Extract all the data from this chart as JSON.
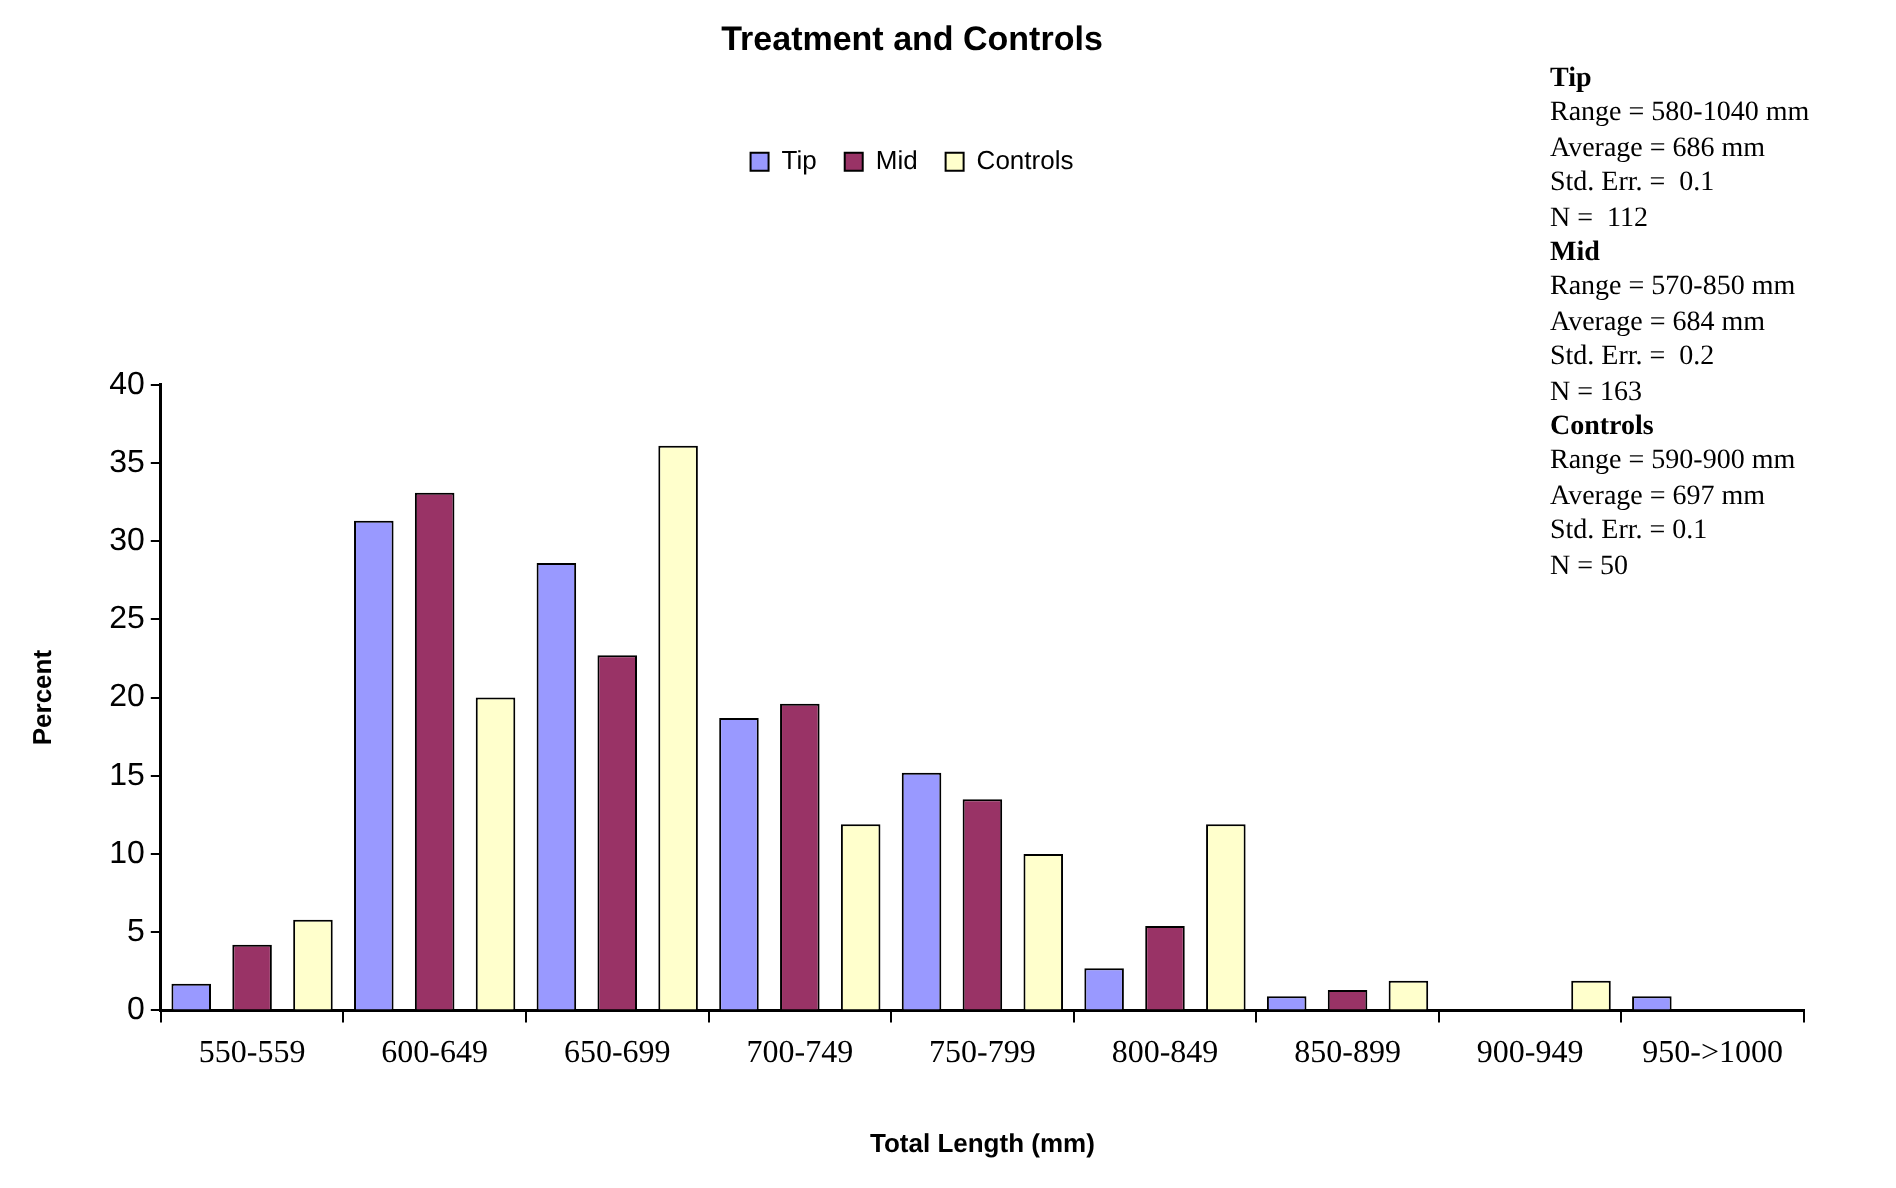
{
  "chart_data": {
    "type": "bar",
    "title": "Treatment and Controls",
    "xlabel": "Total Length (mm)",
    "ylabel": "Percent",
    "categories": [
      "550-559",
      "600-649",
      "650-699",
      "700-749",
      "750-799",
      "800-849",
      "850-899",
      "900-949",
      "950->1000"
    ],
    "series": [
      {
        "name": "Tip",
        "color": "#9999ff",
        "values": [
          1.7,
          31.3,
          28.6,
          18.7,
          15.2,
          2.7,
          0.9,
          0,
          0.9
        ]
      },
      {
        "name": "Mid",
        "color": "#993366",
        "values": [
          4.2,
          33.1,
          22.7,
          19.6,
          13.5,
          5.4,
          1.3,
          0,
          0
        ]
      },
      {
        "name": "Controls",
        "color": "#ffffcc",
        "values": [
          5.8,
          20,
          36.1,
          11.9,
          10,
          11.9,
          1.9,
          1.9,
          0
        ]
      }
    ],
    "ylim": [
      0,
      40
    ],
    "yticks": [
      0,
      5,
      10,
      15,
      20,
      25,
      30,
      35,
      40
    ],
    "grid": false,
    "legend": "top",
    "annotations": [
      "Tip",
      "Range = 580-1040 mm",
      "Average = 686 mm",
      "Std. Err. =  0.1",
      "N =  112",
      "Mid",
      "Range = 570-850 mm",
      "Average = 684 mm",
      "Std. Err. =  0.2",
      "N = 163",
      "Controls",
      "Range = 590-900 mm",
      "Average = 697 mm",
      "Std. Err. = 0.1",
      "N = 50"
    ]
  }
}
